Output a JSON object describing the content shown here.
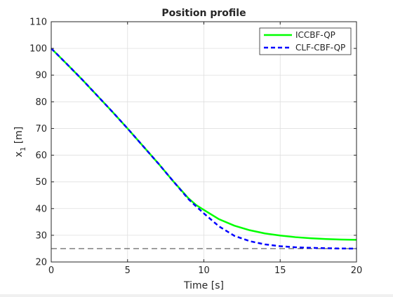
{
  "chart_data": {
    "type": "line",
    "title": "Position profile",
    "xlabel": "Time [s]",
    "ylabel_main": "x",
    "ylabel_sub": "1",
    "ylabel_unit": " [m]",
    "xlim": [
      0,
      20
    ],
    "ylim": [
      20,
      110
    ],
    "xticks": [
      0,
      5,
      10,
      15,
      20
    ],
    "yticks": [
      20,
      30,
      40,
      50,
      60,
      70,
      80,
      90,
      100,
      110
    ],
    "grid": true,
    "legend_position": "top-right",
    "series": [
      {
        "name": "ICCBF-QP",
        "color": "#00ff00",
        "style": "solid",
        "x": [
          0,
          1,
          2,
          3,
          4,
          5,
          6,
          7,
          8,
          9,
          9.5,
          10,
          11,
          12,
          13,
          14,
          15,
          16,
          17,
          18,
          19,
          20
        ],
        "y": [
          100,
          94.3,
          88.5,
          82.4,
          76.3,
          70,
          63.5,
          57,
          50.2,
          43.8,
          41.3,
          39.5,
          36.0,
          33.6,
          31.9,
          30.7,
          29.9,
          29.3,
          28.9,
          28.6,
          28.4,
          28.3
        ]
      },
      {
        "name": "CLF-CBF-QP",
        "color": "#0000ff",
        "style": "dashed",
        "x": [
          0,
          1,
          2,
          3,
          4,
          5,
          6,
          7,
          8,
          9,
          9.5,
          10,
          11,
          12,
          13,
          14,
          15,
          16,
          17,
          18,
          19,
          20
        ],
        "y": [
          100,
          94.3,
          88.5,
          82.4,
          76.3,
          70,
          63.5,
          57,
          50.2,
          43.5,
          40.8,
          38.2,
          33.3,
          29.8,
          27.8,
          26.6,
          25.9,
          25.5,
          25.3,
          25.15,
          25.05,
          25.0
        ]
      }
    ],
    "reference_line": {
      "y": 25,
      "color": "#262626",
      "style": "dashed"
    }
  }
}
